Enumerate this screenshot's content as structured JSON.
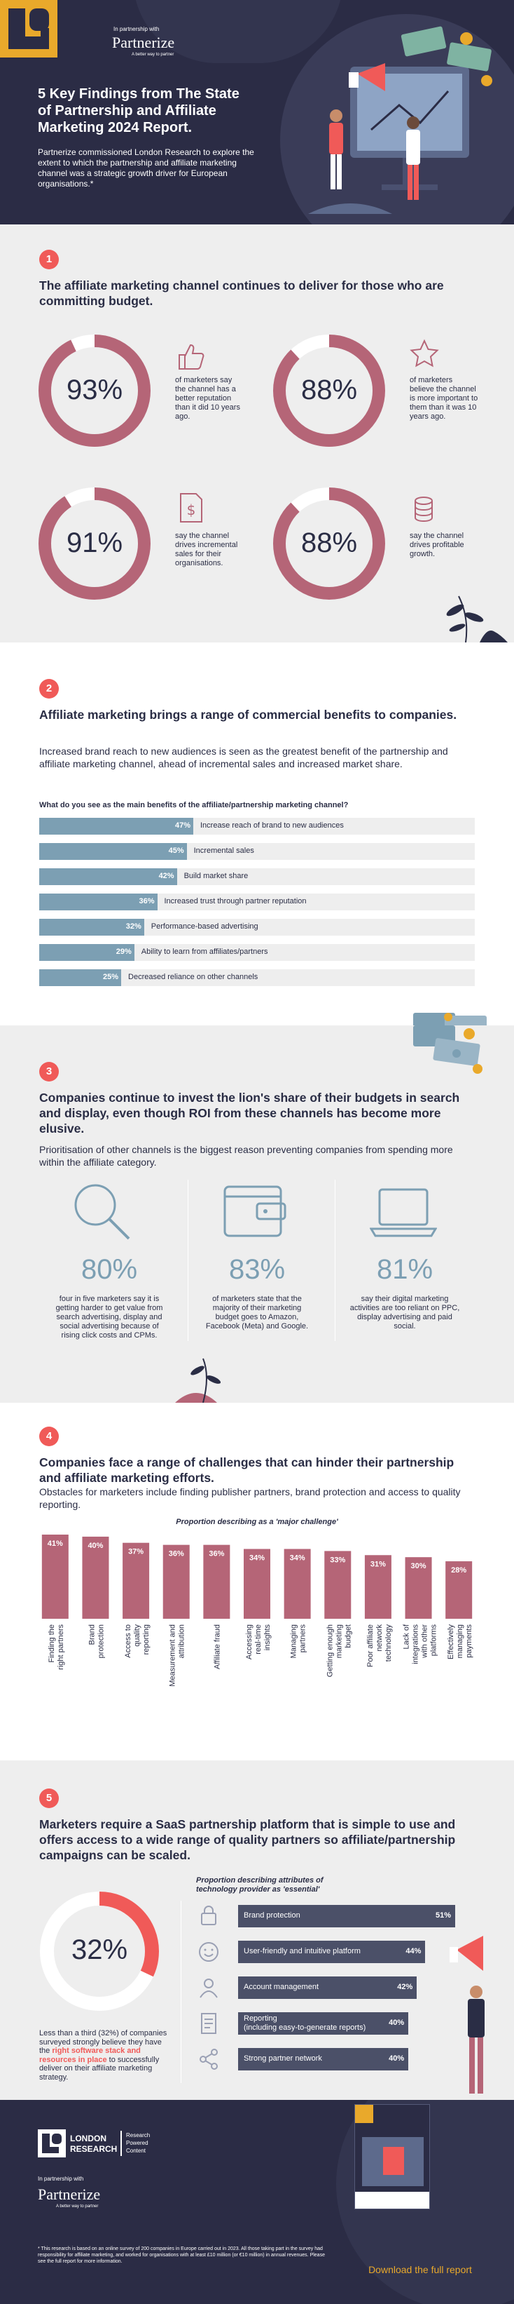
{
  "header": {
    "logo_letters": "LR",
    "in_partnership": "In partnership with",
    "partner_name": "Partnerize",
    "partner_tagline": "A better way to partner",
    "title": "5 Key Findings from The State of Partnership and Affiliate Marketing 2024 Report.",
    "intro": "Partnerize commissioned London Research to explore the extent to which the partnership and affiliate marketing channel was a strategic growth driver for European organisations.*"
  },
  "section1": {
    "number": "1",
    "heading": "The affiliate marketing channel continues to deliver for those who are committing budget.",
    "stats": [
      {
        "value": "93%",
        "text": "of marketers say the channel has a better reputation than it did 10 years ago.",
        "icon": "thumbs-up-icon",
        "pct": 93
      },
      {
        "value": "88%",
        "text": "of marketers believe the channel is more important to them than it was 10 years ago.",
        "icon": "star-icon",
        "pct": 88
      },
      {
        "value": "91%",
        "text": "say the channel drives incremental sales for their organisations.",
        "icon": "dollar-document-icon",
        "pct": 91
      },
      {
        "value": "88%",
        "text": "say the channel drives profitable growth.",
        "icon": "coin-stack-icon",
        "pct": 88
      }
    ]
  },
  "section2": {
    "number": "2",
    "heading": "Affiliate marketing brings a range of commercial benefits to companies.",
    "lead": "Increased brand reach to new audiences is seen as the greatest benefit of the partnership and affiliate marketing channel, ahead of incremental sales and increased market share.",
    "question": "What do you see as the main benefits of the affiliate/partnership marketing channel?"
  },
  "section3": {
    "number": "3",
    "heading": "Companies continue to invest the lion's share of their budgets in search and display, even though ROI from these channels has become more elusive.",
    "lead": "Prioritisation of other channels is the biggest reason preventing companies from spending more within the affiliate category.",
    "stats": [
      {
        "value": "80%",
        "text": "four in five marketers say it is getting harder to get value from search advertising, display and social advertising because of rising click costs and CPMs.",
        "icon": "magnifier-icon"
      },
      {
        "value": "83%",
        "text": "of marketers state that the majority of their marketing budget goes to Amazon, Facebook (Meta) and Google.",
        "icon": "wallet-icon"
      },
      {
        "value": "81%",
        "text": "say their digital marketing activities are too reliant on PPC, display advertising and paid social.",
        "icon": "laptop-icon"
      }
    ]
  },
  "section4": {
    "number": "4",
    "heading": "Companies face a range of challenges that can hinder their partnership and affiliate marketing efforts.",
    "lead": "Obstacles for marketers include finding publisher partners, brand protection and access to quality reporting.",
    "chart_title": "Proportion describing as a 'major challenge'"
  },
  "section5": {
    "number": "5",
    "heading": "Marketers require a SaaS partnership platform that is simple to use and offers access to a wide range of quality partners so affiliate/partnership campaigns can be scaled.",
    "donut_value": "32%",
    "donut_pct": 32,
    "donut_text_a": "Less than a third (32%) of companies surveyed strongly believe they have the ",
    "donut_text_b": "right software stack and resources in place",
    "donut_text_c": " to successfully deliver on their affiliate marketing strategy.",
    "chart_title": "Proportion describing attributes of technology provider as 'essential'"
  },
  "footer": {
    "lr_name_1": "LONDON",
    "lr_name_2": "RESEARCH",
    "lr_tag_1": "Research",
    "lr_tag_2": "Powered",
    "lr_tag_3": "Content",
    "in_partnership": "In partnership with",
    "partner_name": "Partnerize",
    "partner_tagline": "A better way to partner",
    "footnote": "* This research is based on an online survey of 200 companies in Europe carried out in 2023. All those taking part in the survey had responsibility for affiliate marketing, and worked for organisations with at least £10 million (or €10 million) in annual revenues. Please see the full report for more information.",
    "cta": "Download the full report"
  },
  "colors": {
    "navy": "#2a2d45",
    "coral": "#f05a58",
    "maroon": "#b56577",
    "steel_blue": "#7c9fb3",
    "slate_bar": "#4b5068",
    "light_gray": "#eeeeee",
    "gold": "#e9a92b"
  },
  "chart_data": [
    {
      "type": "bar",
      "orientation": "horizontal",
      "title": "What do you see as the main benefits of the affiliate/partnership marketing channel?",
      "categories": [
        "Increase reach of brand to new audiences",
        "Incremental sales",
        "Build market share",
        "Increased trust through partner reputation",
        "Performance-based advertising",
        "Ability to learn from affiliates/partners",
        "Decreased reliance on other channels"
      ],
      "values": [
        47,
        45,
        42,
        36,
        32,
        29,
        25
      ],
      "value_labels": [
        "47%",
        "45%",
        "42%",
        "36%",
        "32%",
        "29%",
        "25%"
      ],
      "xlim": [
        0,
        100
      ],
      "grid": false
    },
    {
      "type": "bar",
      "orientation": "vertical",
      "title": "Proportion describing as a 'major challenge'",
      "categories": [
        "Finding the right partners",
        "Brand protection",
        "Access to quality reporting",
        "Measurement and attribution",
        "Affiliate fraud",
        "Accessing real-time insights",
        "Managing partners",
        "Getting enough marketing budget",
        "Poor affiliate network technology",
        "Lack of integrations with other platforms",
        "Effectively managing payments"
      ],
      "values": [
        41,
        40,
        37,
        36,
        36,
        34,
        34,
        33,
        31,
        30,
        28
      ],
      "value_labels": [
        "41%",
        "40%",
        "37%",
        "36%",
        "36%",
        "34%",
        "34%",
        "33%",
        "31%",
        "30%",
        "28%"
      ],
      "ylim": [
        0,
        45
      ],
      "grid": false
    },
    {
      "type": "bar",
      "orientation": "horizontal",
      "title": "Proportion describing attributes of technology provider as 'essential'",
      "categories": [
        "Brand protection",
        "User-friendly and intuitive platform",
        "Account management",
        "Reporting\n(including easy-to-generate reports)",
        "Strong partner network"
      ],
      "values": [
        51,
        44,
        42,
        40,
        40
      ],
      "value_labels": [
        "51%",
        "44%",
        "42%",
        "40%",
        "40%"
      ],
      "icons": [
        "lock-icon",
        "smiley-icon",
        "user-icon",
        "report-icon",
        "network-icon"
      ],
      "xlim": [
        0,
        55
      ],
      "grid": false
    }
  ]
}
